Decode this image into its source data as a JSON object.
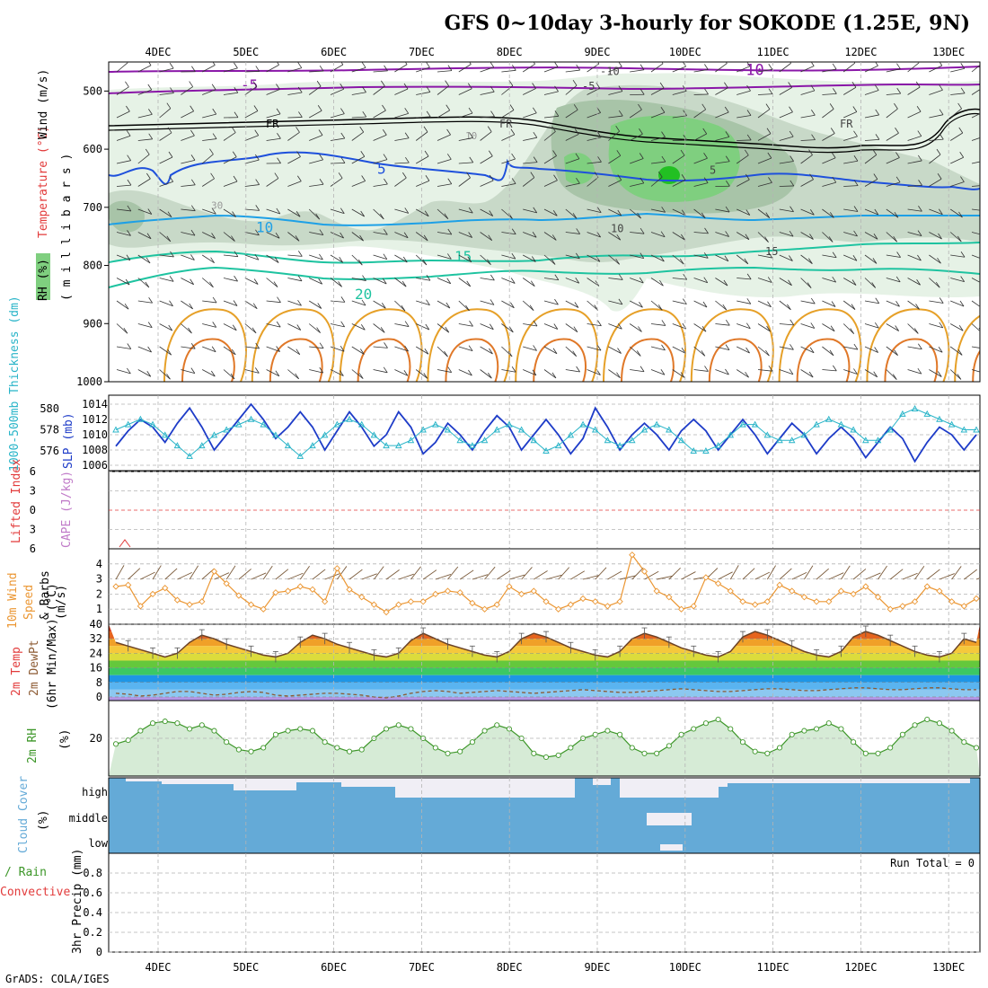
{
  "title": "GFS 0~10day 3-hourly for SOKODE (1.25E, 9N)",
  "footer": "GrADS: COLA/IGES",
  "colors": {
    "frame": "#000000",
    "grid": "#b4b4b4",
    "temp_purple": "#8a17a8",
    "temp_blue_dark": "#1e50dc",
    "temp_blue_light": "#1ea0e6",
    "temp_teal": "#1ec3a0",
    "temp_orange": "#e6a028",
    "slp": "#1e3cc8",
    "thickness": "#28b4c8",
    "wind10m": "#eb9632",
    "rh2m": "#3c9628",
    "cloud": "#64aad7",
    "dewpoint": "#8c5a32"
  },
  "chart_data": [
    {
      "panel": "upper_air",
      "type": "contour",
      "ylabel": [
        "RH (%)",
        "Temperature (°C)",
        "Wind (m/s)"
      ],
      "ylabel_units": "( m i l l i b a r s )",
      "x_ticks": [
        "4DEC",
        "5DEC",
        "6DEC",
        "7DEC",
        "8DEC",
        "9DEC",
        "10DEC",
        "11DEC",
        "12DEC",
        "13DEC"
      ],
      "y_ticks": [
        500,
        600,
        700,
        800,
        900,
        1000
      ],
      "ylim": [
        450,
        1000
      ],
      "contour_labels": [
        {
          "text": "-10",
          "level_mb": 465
        },
        {
          "text": "-5",
          "level_mb": 490
        },
        {
          "text": "FR",
          "level_mb": 555
        },
        {
          "text": "5",
          "level_mb": 635
        },
        {
          "text": "10",
          "level_mb": 735
        },
        {
          "text": "15",
          "level_mb": 785
        },
        {
          "text": "20",
          "level_mb": 850
        },
        {
          "text": "30",
          "level_mb": 695
        },
        {
          "text": "10",
          "level_mb": 575
        }
      ],
      "rh_legend": "RH (%)"
    },
    {
      "panel": "slp_thickness",
      "type": "line",
      "ylabel_left": "1000-500mb Thickness (dm)",
      "ylabel_right": "SLP (mb)",
      "y_ticks_left": [
        576,
        578,
        580
      ],
      "y_ticks_right": [
        1006,
        1008,
        1010,
        1012,
        1014
      ],
      "series": [
        {
          "name": "SLP",
          "unit": "mb",
          "values": [
            1008.5,
            1010.5,
            1012,
            1011,
            1009,
            1011.5,
            1013.5,
            1011,
            1008,
            1010,
            1012,
            1014,
            1012,
            1009.5,
            1011,
            1013,
            1011,
            1008,
            1010.5,
            1013,
            1011,
            1008.5,
            1010,
            1013,
            1011,
            1007.5,
            1009,
            1011.5,
            1010,
            1008,
            1010.5,
            1012.5,
            1011,
            1008,
            1010,
            1012,
            1010,
            1007.5,
            1009.5,
            1013.5,
            1011,
            1008,
            1010,
            1011.5,
            1010,
            1008,
            1010.5,
            1012,
            1010.5,
            1008,
            1010,
            1012,
            1010,
            1007.5,
            1009.5,
            1011.5,
            1010,
            1007.5,
            1009.5,
            1011,
            1009.5,
            1007,
            1009,
            1011,
            1009.5,
            1006.5,
            1009,
            1011,
            1010,
            1008,
            1010
          ]
        },
        {
          "name": "Thickness",
          "unit": "dm",
          "values": [
            578,
            578.5,
            579,
            578.5,
            577.5,
            576.5,
            575.5,
            576.5,
            577.5,
            578,
            578.5,
            579,
            578.5,
            577.5,
            576.5,
            575.5,
            576.5,
            577.5,
            578.5,
            579,
            578.5,
            577.5,
            576.5,
            576.5,
            577,
            578,
            578.5,
            578,
            577,
            576.5,
            577,
            578,
            578.5,
            578,
            577,
            576,
            576.5,
            577.5,
            578.5,
            578,
            577,
            576.5,
            577,
            578,
            578.5,
            578,
            577,
            576,
            576,
            576.5,
            577.5,
            578.5,
            578.5,
            577.5,
            577,
            577,
            577.5,
            578.5,
            579,
            578.5,
            578,
            577,
            577,
            578,
            579.5,
            580,
            579.5,
            579,
            578.5,
            578,
            578
          ]
        }
      ]
    },
    {
      "panel": "stability",
      "type": "line",
      "ylabel_left": "Lifted Index",
      "ylabel_right": "CAPE (J/kg)",
      "y_ticks": [
        6,
        3,
        0,
        -3,
        -6
      ],
      "y_tick_labels": [
        "6",
        "3",
        "0",
        "3",
        "6"
      ]
    },
    {
      "panel": "wind_10m",
      "type": "line",
      "ylabel": [
        "10m Wind",
        "Speed",
        "& Barbs",
        "(m/s)"
      ],
      "y_ticks": [
        1,
        2,
        3,
        4
      ],
      "ylim": [
        0,
        5
      ],
      "series": [
        {
          "name": "10m Wind Speed",
          "unit": "m/s",
          "values": [
            2.5,
            2.6,
            1.2,
            2,
            2.4,
            1.6,
            1.3,
            1.5,
            3.5,
            2.7,
            1.9,
            1.3,
            1,
            2.1,
            2.2,
            2.5,
            2.3,
            1.5,
            3.7,
            2.3,
            1.8,
            1.3,
            0.8,
            1.3,
            1.5,
            1.5,
            2,
            2.2,
            2.1,
            1.4,
            1,
            1.3,
            2.5,
            2,
            2.2,
            1.5,
            1,
            1.3,
            1.7,
            1.5,
            1.2,
            1.5,
            4.6,
            3.5,
            2.2,
            1.8,
            1,
            1.2,
            3.1,
            2.7,
            2.2,
            1.5,
            1.3,
            1.5,
            2.6,
            2.2,
            1.8,
            1.5,
            1.5,
            2.2,
            2,
            2.5,
            1.8,
            1,
            1.2,
            1.5,
            2.5,
            2.2,
            1.5,
            1.2,
            1.7
          ]
        }
      ]
    },
    {
      "panel": "temperature_2m",
      "type": "area",
      "ylabel": [
        "2m Temp",
        "2m DewPt",
        "(6hr Min/Max) (°C)"
      ],
      "y_ticks": [
        0,
        8,
        16,
        24,
        32,
        40
      ],
      "ylim": [
        -2,
        40
      ],
      "series": [
        {
          "name": "2m Temp",
          "unit": "°C",
          "values": [
            30,
            28,
            26,
            24,
            22,
            24,
            30,
            34,
            32,
            29,
            27,
            25,
            23,
            22,
            24,
            30,
            34,
            32,
            29,
            27,
            25,
            23,
            22,
            24,
            31,
            35,
            32,
            29,
            27,
            25,
            23,
            22,
            25,
            32,
            35,
            33,
            30,
            27,
            25,
            23,
            22,
            25,
            32,
            35,
            33,
            30,
            27,
            25,
            23,
            22,
            25,
            33,
            36,
            34,
            31,
            28,
            25,
            23,
            22,
            25,
            33,
            36,
            34,
            31,
            28,
            25,
            23,
            22,
            24,
            32,
            30
          ]
        },
        {
          "name": "2m DewPt",
          "unit": "°C",
          "values": [
            2,
            1.5,
            0.5,
            1,
            2,
            3,
            3,
            2,
            1,
            1.5,
            2.5,
            3,
            2.5,
            1,
            0.5,
            1,
            1.5,
            2,
            2,
            1.5,
            1,
            0,
            -0.5,
            0.5,
            2,
            3,
            3.5,
            3,
            2,
            2.5,
            3,
            3.5,
            3,
            2.5,
            2,
            2.5,
            3,
            3.5,
            4,
            3.5,
            3,
            2.5,
            2.5,
            3,
            3.5,
            4,
            4.5,
            4,
            3.5,
            3,
            3,
            3.5,
            4,
            4.5,
            4.5,
            4,
            3.5,
            3.5,
            4,
            4.5,
            5,
            5,
            4.5,
            4,
            4,
            4.5,
            5,
            5,
            4.5,
            4,
            4
          ]
        }
      ]
    },
    {
      "panel": "rh_2m",
      "type": "area",
      "ylabel": [
        "2m RH",
        "(%)"
      ],
      "y_ticks": [
        20
      ],
      "ylim": [
        0,
        40
      ],
      "series": [
        {
          "name": "2m RH",
          "unit": "%",
          "values": [
            17,
            19,
            24,
            28,
            29,
            28,
            25,
            27,
            24,
            18,
            14,
            13,
            15,
            22,
            24,
            25,
            24,
            18,
            15,
            13,
            14,
            20,
            25,
            27,
            25,
            20,
            15,
            12,
            13,
            18,
            24,
            27,
            25,
            20,
            12,
            10,
            11,
            15,
            20,
            22,
            24,
            22,
            15,
            12,
            12,
            16,
            22,
            25,
            28,
            30,
            25,
            18,
            13,
            12,
            15,
            22,
            24,
            25,
            28,
            25,
            18,
            12,
            12,
            15,
            22,
            27,
            30,
            28,
            24,
            18,
            15
          ]
        }
      ]
    },
    {
      "panel": "cloud_cover",
      "type": "bar",
      "ylabel": [
        "Cloud Cover",
        "(%)"
      ],
      "levels": [
        "high",
        "middle",
        "low"
      ]
    },
    {
      "panel": "precip_3hr",
      "type": "bar",
      "ylabel_left_1": "Total / Rain",
      "ylabel_left_2": "Convective",
      "ylabel": "3hr Precip (mm)",
      "y_ticks": [
        0,
        0.2,
        0.4,
        0.6,
        0.8
      ],
      "run_total": "Run Total = 0",
      "x_ticks": [
        "4DEC",
        "5DEC",
        "6DEC",
        "7DEC",
        "8DEC",
        "9DEC",
        "10DEC",
        "11DEC",
        "12DEC",
        "13DEC"
      ]
    }
  ]
}
